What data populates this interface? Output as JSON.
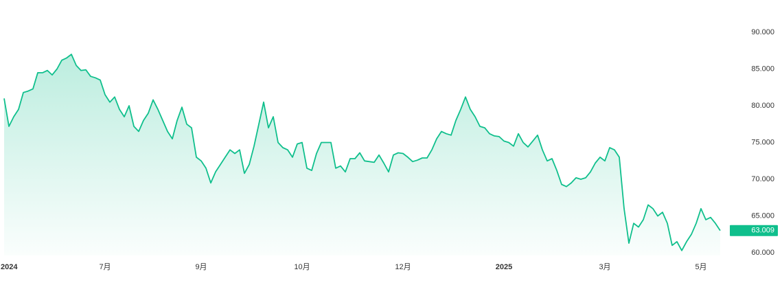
{
  "chart_data": {
    "type": "line",
    "color": "#0fbf8c",
    "grid": false,
    "ylim": [
      60000,
      90000
    ],
    "yticks": [
      {
        "value": 60000,
        "label": "60.000"
      },
      {
        "value": 65000,
        "label": "65.000"
      },
      {
        "value": 70000,
        "label": "70.000"
      },
      {
        "value": 75000,
        "label": "75.000"
      },
      {
        "value": 80000,
        "label": "80.000"
      },
      {
        "value": 85000,
        "label": "85.000"
      },
      {
        "value": 90000,
        "label": "90.000"
      }
    ],
    "categories": [
      null,
      null,
      "2024",
      null,
      null,
      null,
      null,
      null,
      null,
      null,
      null,
      null,
      null,
      null,
      null,
      null,
      null,
      null,
      null,
      null,
      null,
      "7月",
      null,
      null,
      null,
      null,
      null,
      null,
      null,
      null,
      null,
      null,
      null,
      null,
      null,
      null,
      null,
      null,
      null,
      null,
      null,
      "9月",
      null,
      null,
      null,
      null,
      null,
      null,
      null,
      null,
      null,
      null,
      null,
      null,
      null,
      null,
      null,
      null,
      null,
      null,
      null,
      null,
      "10月",
      null,
      null,
      null,
      null,
      null,
      null,
      null,
      null,
      null,
      null,
      null,
      null,
      null,
      null,
      null,
      null,
      null,
      null,
      null,
      null,
      "12月",
      null,
      null,
      null,
      null,
      null,
      null,
      null,
      null,
      null,
      null,
      null,
      null,
      null,
      null,
      null,
      null,
      null,
      null,
      null,
      null,
      "2025",
      null,
      null,
      null,
      null,
      null,
      null,
      null,
      null,
      null,
      null,
      null,
      null,
      null,
      null,
      null,
      null,
      null,
      null,
      null,
      null,
      "3月",
      null,
      null,
      null,
      null,
      null,
      null,
      null,
      null,
      null,
      null,
      null,
      null,
      null,
      null,
      null,
      null,
      null,
      null,
      null,
      "5月",
      null,
      null,
      null,
      null
    ],
    "values": [
      81000,
      77200,
      78500,
      79500,
      81800,
      82000,
      82300,
      84500,
      84500,
      84800,
      84200,
      85000,
      86200,
      86500,
      87000,
      85500,
      84800,
      84900,
      84000,
      83800,
      83500,
      81500,
      80500,
      81200,
      79500,
      78500,
      80000,
      77200,
      76500,
      78000,
      79000,
      80800,
      79500,
      78000,
      76500,
      75500,
      78000,
      79800,
      77500,
      77000,
      73000,
      72500,
      71500,
      69500,
      71000,
      72000,
      73000,
      74000,
      73500,
      74000,
      70800,
      72000,
      74500,
      77500,
      80500,
      77000,
      78500,
      75000,
      74300,
      74000,
      73000,
      74800,
      75000,
      71500,
      71200,
      73500,
      75000,
      75000,
      75000,
      71500,
      71800,
      71000,
      72800,
      72800,
      73600,
      72500,
      72400,
      72300,
      73300,
      72200,
      71000,
      73300,
      73600,
      73500,
      73000,
      72400,
      72600,
      72900,
      72900,
      74000,
      75500,
      76500,
      76200,
      76000,
      78000,
      79500,
      81200,
      79500,
      78500,
      77200,
      77000,
      76200,
      75900,
      75800,
      75200,
      75000,
      74500,
      76200,
      75000,
      74400,
      75200,
      76000,
      74000,
      72500,
      72800,
      71200,
      69300,
      69000,
      69500,
      70200,
      70000,
      70200,
      71000,
      72200,
      73000,
      72500,
      74300,
      74000,
      73000,
      66000,
      61300,
      64000,
      63500,
      64500,
      66500,
      66000,
      65000,
      65500,
      64000,
      61000,
      61500,
      60300,
      61500,
      62500,
      64000,
      66000,
      64500,
      64800,
      64000,
      63009
    ],
    "value_labels": [
      null,
      null,
      null,
      null,
      null,
      null,
      null,
      null,
      null,
      null,
      null,
      null,
      null,
      null,
      null,
      null,
      null,
      null,
      null,
      null,
      null,
      null,
      null,
      null,
      null,
      null,
      null,
      null,
      null,
      null,
      null,
      null,
      null,
      null,
      null,
      null,
      null,
      null,
      null,
      null,
      null,
      null,
      null,
      null,
      null,
      null,
      null,
      null,
      null,
      null,
      null,
      null,
      null,
      null,
      null,
      null,
      null,
      null,
      null,
      null,
      null,
      null,
      null,
      null,
      null,
      null,
      null,
      null,
      null,
      null,
      null,
      null,
      null,
      null,
      null,
      null,
      null,
      null,
      null,
      null,
      null,
      null,
      null,
      null,
      null,
      null,
      null,
      null,
      null,
      null,
      null,
      null,
      null,
      null,
      null,
      null,
      null,
      null,
      null,
      null,
      null,
      null,
      null,
      null,
      null,
      null,
      null,
      null,
      null,
      null,
      null,
      null,
      null,
      null,
      null,
      null,
      null,
      null,
      null,
      null,
      null,
      null,
      null,
      null,
      null,
      null,
      null,
      null,
      null,
      null,
      null,
      null,
      null,
      null,
      null,
      null,
      null,
      null,
      null,
      null,
      null,
      null,
      null,
      null,
      null,
      null,
      null,
      null,
      null,
      "63.009"
    ]
  }
}
